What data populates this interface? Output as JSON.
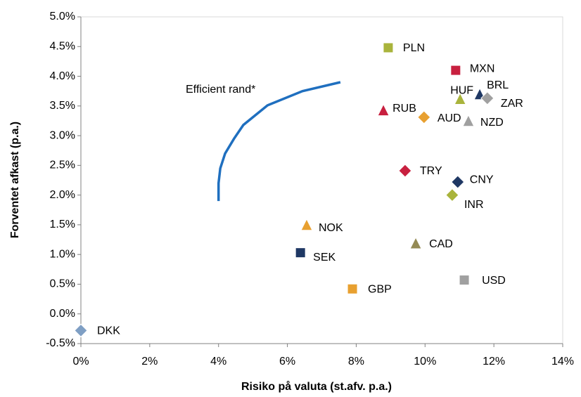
{
  "chart_data": {
    "type": "scatter",
    "xlabel": "Risiko på valuta (st.afv. p.a.)",
    "ylabel": "Forventet afkast (p.a.)",
    "xlim": [
      0,
      14
    ],
    "ylim": [
      -0.5,
      5.0
    ],
    "xticks": [
      {
        "value": 0,
        "label": "0%"
      },
      {
        "value": 2,
        "label": "2%"
      },
      {
        "value": 4,
        "label": "4%"
      },
      {
        "value": 6,
        "label": "6%"
      },
      {
        "value": 8,
        "label": "8%"
      },
      {
        "value": 10,
        "label": "10%"
      },
      {
        "value": 12,
        "label": "12%"
      },
      {
        "value": 14,
        "label": "14%"
      }
    ],
    "yticks": [
      {
        "value": -0.5,
        "label": "-0.5%"
      },
      {
        "value": 0,
        "label": "0.0%"
      },
      {
        "value": 0.5,
        "label": "0.5%"
      },
      {
        "value": 1.0,
        "label": "1.0%"
      },
      {
        "value": 1.5,
        "label": "1.5%"
      },
      {
        "value": 2.0,
        "label": "2.0%"
      },
      {
        "value": 2.5,
        "label": "2.5%"
      },
      {
        "value": 3.0,
        "label": "3.0%"
      },
      {
        "value": 3.5,
        "label": "3.5%"
      },
      {
        "value": 4.0,
        "label": "4.0%"
      },
      {
        "value": 4.5,
        "label": "4.5%"
      },
      {
        "value": 5.0,
        "label": "5.0%"
      }
    ],
    "series": [
      {
        "name": "Efficient rand*",
        "color": "#1f6fbf",
        "marker": "line",
        "x": [
          4.0,
          4.0,
          4.05,
          4.19,
          4.45,
          4.72,
          5.42,
          6.44,
          7.54
        ],
        "values": [
          1.9,
          2.2,
          2.45,
          2.7,
          2.95,
          3.18,
          3.51,
          3.75,
          3.9
        ]
      },
      {
        "name": "DKK",
        "color": "#7f9fc4",
        "marker": "diamond",
        "x": [
          0
        ],
        "values": [
          -0.28
        ]
      },
      {
        "name": "SEK",
        "color": "#1f3864",
        "marker": "square",
        "x": [
          6.38
        ],
        "values": [
          1.03
        ]
      },
      {
        "name": "NOK",
        "color": "#e8a030",
        "marker": "triangle",
        "x": [
          6.56
        ],
        "values": [
          1.49
        ]
      },
      {
        "name": "GBP",
        "color": "#e8a030",
        "marker": "square",
        "x": [
          7.89
        ],
        "values": [
          0.42
        ]
      },
      {
        "name": "PLN",
        "color": "#a9b43c",
        "marker": "square",
        "x": [
          8.93
        ],
        "values": [
          4.48
        ]
      },
      {
        "name": "MXN",
        "color": "#c8203f",
        "marker": "square",
        "x": [
          10.89
        ],
        "values": [
          4.1
        ]
      },
      {
        "name": "RUB",
        "color": "#c8203f",
        "marker": "triangle",
        "x": [
          8.79
        ],
        "values": [
          3.42
        ]
      },
      {
        "name": "AUD",
        "color": "#e8a030",
        "marker": "diamond",
        "x": [
          9.97
        ],
        "values": [
          3.31
        ]
      },
      {
        "name": "TRY",
        "color": "#c8203f",
        "marker": "diamond",
        "x": [
          9.42
        ],
        "values": [
          2.41
        ]
      },
      {
        "name": "CNY",
        "color": "#1f3864",
        "marker": "diamond",
        "x": [
          10.95
        ],
        "values": [
          2.22
        ]
      },
      {
        "name": "INR",
        "color": "#a9b43c",
        "marker": "diamond",
        "x": [
          10.79
        ],
        "values": [
          2.0
        ]
      },
      {
        "name": "CAD",
        "color": "#948a54",
        "marker": "triangle",
        "x": [
          9.73
        ],
        "values": [
          1.18
        ]
      },
      {
        "name": "USD",
        "color": "#a0a0a0",
        "marker": "square",
        "x": [
          11.14
        ],
        "values": [
          0.57
        ]
      },
      {
        "name": "HUF",
        "color": "#a9b43c",
        "marker": "triangle",
        "x": [
          11.02
        ],
        "values": [
          3.61
        ]
      },
      {
        "name": "BRL",
        "color": "#1f3864",
        "marker": "triangle",
        "x": [
          11.59
        ],
        "values": [
          3.69
        ]
      },
      {
        "name": "ZAR",
        "color": "#a0a0a0",
        "marker": "diamond",
        "x": [
          11.81
        ],
        "values": [
          3.63
        ]
      },
      {
        "name": "NZD",
        "color": "#a0a0a0",
        "marker": "triangle",
        "x": [
          11.26
        ],
        "values": [
          3.24
        ]
      }
    ]
  }
}
